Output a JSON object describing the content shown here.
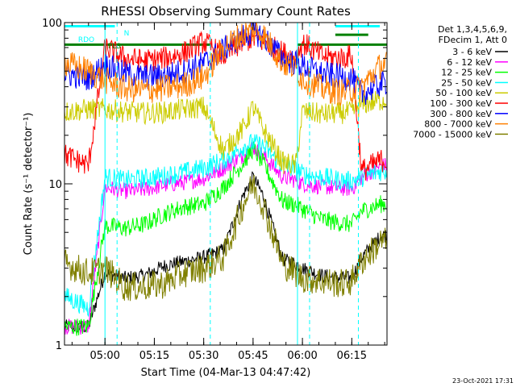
{
  "chart_data": {
    "type": "line",
    "title": "RHESSI Observing Summary Count Rates",
    "xlabel": "Start Time (04-Mar-13 04:47:42)",
    "ylabel": "Count Rate (s⁻¹ detector⁻¹)",
    "y_scale": "log",
    "ylim": [
      1,
      100
    ],
    "xlim": [
      "04:47:42",
      "06:25:42"
    ],
    "x_ticks": [
      "05:00",
      "05:15",
      "05:30",
      "05:45",
      "06:00",
      "06:15"
    ],
    "y_ticks": [
      "1",
      "10",
      "100"
    ],
    "legend_header": [
      "Det 1,3,4,5,6,9,",
      "FDecim 1, Att 0"
    ],
    "legend_position": "top-right",
    "timestamp": "23-Oct-2021 17:31",
    "flags": [
      {
        "label": "RDO",
        "color": "#00ffff"
      },
      {
        "label": "N",
        "color": "#00ffff"
      },
      {
        "label": "FLS",
        "color": "#008000"
      }
    ],
    "flag_lines": [
      {
        "color": "#00ffff",
        "level": 95,
        "segments": [
          [
            "04:47:42",
            "05:03:00"
          ],
          [
            "06:10:00",
            "06:23:30"
          ]
        ]
      },
      {
        "color": "#008000",
        "level": 73,
        "segments": [
          [
            "04:47:42",
            "05:32:00"
          ],
          [
            "05:58:30",
            "06:25:42"
          ]
        ]
      },
      {
        "color": "#008000",
        "level": 84,
        "segments": [
          [
            "06:10:00",
            "06:20:00"
          ]
        ]
      }
    ],
    "day_intervals": [
      [
        "05:00:00",
        "05:32:00"
      ],
      [
        "05:58:30",
        "06:17:00"
      ]
    ],
    "x": [
      "04:48",
      "04:55",
      "05:00",
      "05:06",
      "05:12",
      "05:18",
      "05:24",
      "05:30",
      "05:36",
      "05:42",
      "05:45",
      "05:48",
      "05:54",
      "05:58",
      "06:00",
      "06:06",
      "06:12",
      "06:15",
      "06:18",
      "06:24"
    ],
    "series": [
      {
        "name": "3 - 6 keV",
        "color": "#000000",
        "values": [
          1.3,
          1.3,
          2.8,
          2.6,
          2.7,
          3.1,
          3.3,
          3.5,
          3.9,
          8.5,
          11,
          8.5,
          3.4,
          3.2,
          3.0,
          2.7,
          2.6,
          2.6,
          3.5,
          4.8
        ]
      },
      {
        "name": "6 - 12 keV",
        "color": "#ff00ff",
        "values": [
          1.3,
          1.3,
          9.5,
          9.0,
          9.2,
          9.8,
          10.2,
          10.8,
          12.5,
          15,
          17,
          15,
          11,
          10.5,
          10,
          9.6,
          9.4,
          9.3,
          11,
          13
        ]
      },
      {
        "name": "12 - 25 keV",
        "color": "#00ff00",
        "values": [
          1.3,
          1.3,
          5.5,
          5.3,
          5.6,
          6.5,
          7.2,
          7.5,
          9.5,
          13.5,
          16.5,
          13.5,
          7.8,
          7.4,
          7.0,
          6.0,
          5.7,
          5.6,
          6.8,
          7.5
        ]
      },
      {
        "name": "25 - 50 keV",
        "color": "#00ffff",
        "values": [
          2.0,
          1.7,
          11,
          10.5,
          10.8,
          11.2,
          11.8,
          12.5,
          14,
          17,
          18,
          17,
          13,
          12.3,
          11.5,
          11,
          10.5,
          10.4,
          11,
          12
        ]
      },
      {
        "name": "50 - 100 keV",
        "color": "#cccc00",
        "values": [
          28,
          29,
          29,
          28,
          27.5,
          27.8,
          29,
          30,
          16,
          22,
          30,
          22,
          13.5,
          13,
          28,
          27,
          27.5,
          28,
          31,
          33
        ]
      },
      {
        "name": "100 - 300 keV",
        "color": "#ff0000",
        "values": [
          15,
          13,
          70,
          60,
          58,
          60,
          65,
          76,
          62,
          76,
          80,
          76,
          65,
          60,
          75,
          62,
          60,
          63,
          12,
          14
        ]
      },
      {
        "name": "300 - 800 keV",
        "color": "#0000ff",
        "values": [
          48,
          45,
          55,
          48,
          46,
          47,
          50,
          56,
          68,
          82,
          88,
          82,
          60,
          56,
          54,
          48,
          46,
          45,
          36,
          42
        ]
      },
      {
        "name": "800 - 7000 keV",
        "color": "#ff8000",
        "values": [
          56,
          50,
          44,
          39,
          38,
          39,
          41,
          46,
          70,
          85,
          90,
          85,
          56,
          52,
          45,
          39,
          37,
          38,
          40,
          55
        ]
      },
      {
        "name": "7000 - 15000 keV",
        "color": "#808000",
        "values": [
          3.2,
          2.8,
          3.0,
          2.3,
          2.3,
          2.4,
          2.8,
          3.0,
          3.5,
          7.5,
          10,
          7.5,
          3.2,
          2.8,
          2.6,
          2.5,
          2.4,
          2.5,
          3.3,
          4.4
        ]
      }
    ]
  }
}
